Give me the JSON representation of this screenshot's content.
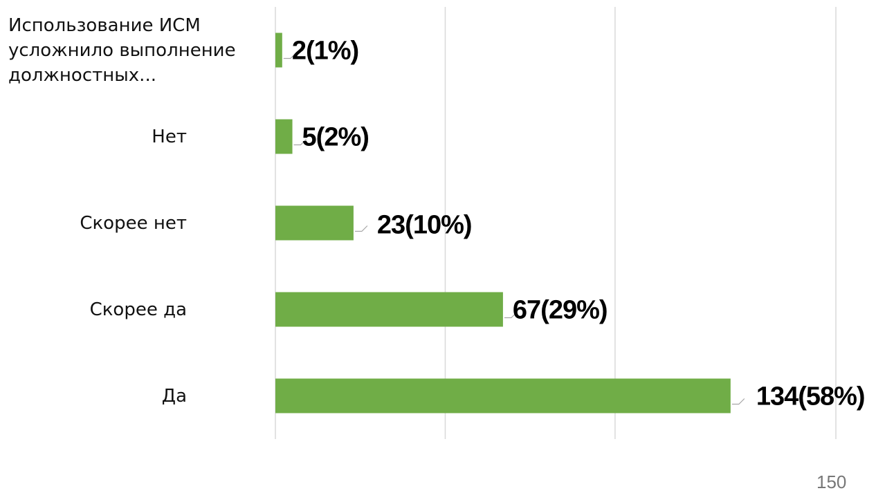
{
  "chart_data": {
    "type": "barh",
    "categories": [
      "Использование ИСМ усложнило выполнение должностных...",
      "Нет",
      "Скорее нет",
      "Скорее да",
      "Да"
    ],
    "values": [
      2,
      5,
      23,
      67,
      134
    ],
    "value_labels": [
      "2(1%)",
      "5(2%)",
      "23(10%)",
      "67(29%)",
      "134(58%)"
    ],
    "color": "#70ad47",
    "xlim": [
      0,
      165
    ],
    "xticks": [
      0,
      50,
      100
    ],
    "grid": true
  },
  "page_number": "150"
}
